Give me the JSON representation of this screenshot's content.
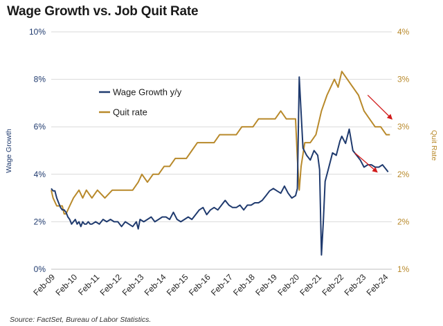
{
  "chart_data": {
    "type": "line",
    "title": "Wage Growth vs. Job Quit Rate",
    "source": "Source: FactSet, Bureau of Labor Statistics.",
    "x_tick_labels": [
      "Feb-09",
      "Feb-10",
      "Feb-11",
      "Feb-12",
      "Feb-13",
      "Feb-14",
      "Feb-15",
      "Feb-16",
      "Feb-17",
      "Feb-18",
      "Feb-19",
      "Feb-20",
      "Feb-21",
      "Feb-22",
      "Feb-23",
      "Feb-24"
    ],
    "x_range": [
      "2009-02",
      "2024-06"
    ],
    "y_left": {
      "label": "Wage Growth",
      "range": [
        0,
        10
      ],
      "ticks": [
        "0%",
        "2%",
        "4%",
        "6%",
        "8%",
        "10%"
      ],
      "color": "#1f3a6e"
    },
    "y_right": {
      "label": "Quit Rate",
      "range": [
        1,
        4
      ],
      "ticks": [
        "1%",
        "2%",
        "2%",
        "3%",
        "3%",
        "4%"
      ],
      "color": "#b8892a"
    },
    "legend_position": "upper-left inside plot",
    "series": [
      {
        "name": "Wage Growth y/y",
        "axis": "left",
        "color": "#1f3a6e",
        "points": [
          [
            "2009-02",
            3.4
          ],
          [
            "2009-03",
            3.3
          ],
          [
            "2009-04",
            3.3
          ],
          [
            "2009-05",
            3.0
          ],
          [
            "2009-06",
            2.8
          ],
          [
            "2009-07",
            2.6
          ],
          [
            "2009-08",
            2.5
          ],
          [
            "2009-09",
            2.5
          ],
          [
            "2009-10",
            2.4
          ],
          [
            "2009-11",
            2.2
          ],
          [
            "2009-12",
            2.1
          ],
          [
            "2010-01",
            1.9
          ],
          [
            "2010-02",
            2.0
          ],
          [
            "2010-03",
            2.1
          ],
          [
            "2010-04",
            1.9
          ],
          [
            "2010-05",
            2.0
          ],
          [
            "2010-06",
            1.8
          ],
          [
            "2010-07",
            2.0
          ],
          [
            "2010-08",
            1.9
          ],
          [
            "2010-09",
            1.9
          ],
          [
            "2010-10",
            2.0
          ],
          [
            "2010-11",
            1.9
          ],
          [
            "2010-12",
            1.9
          ],
          [
            "2011-02",
            2.0
          ],
          [
            "2011-04",
            1.9
          ],
          [
            "2011-06",
            2.1
          ],
          [
            "2011-08",
            2.0
          ],
          [
            "2011-10",
            2.1
          ],
          [
            "2011-12",
            2.0
          ],
          [
            "2012-02",
            2.0
          ],
          [
            "2012-04",
            1.8
          ],
          [
            "2012-06",
            2.0
          ],
          [
            "2012-08",
            1.9
          ],
          [
            "2012-10",
            1.8
          ],
          [
            "2012-12",
            2.0
          ],
          [
            "2013-01",
            1.7
          ],
          [
            "2013-02",
            2.1
          ],
          [
            "2013-04",
            2.0
          ],
          [
            "2013-06",
            2.1
          ],
          [
            "2013-08",
            2.2
          ],
          [
            "2013-10",
            2.0
          ],
          [
            "2013-12",
            2.1
          ],
          [
            "2014-02",
            2.2
          ],
          [
            "2014-04",
            2.2
          ],
          [
            "2014-06",
            2.1
          ],
          [
            "2014-08",
            2.4
          ],
          [
            "2014-10",
            2.1
          ],
          [
            "2014-12",
            2.0
          ],
          [
            "2015-02",
            2.1
          ],
          [
            "2015-04",
            2.2
          ],
          [
            "2015-06",
            2.1
          ],
          [
            "2015-08",
            2.3
          ],
          [
            "2015-10",
            2.5
          ],
          [
            "2015-12",
            2.6
          ],
          [
            "2016-02",
            2.3
          ],
          [
            "2016-04",
            2.5
          ],
          [
            "2016-06",
            2.6
          ],
          [
            "2016-08",
            2.5
          ],
          [
            "2016-10",
            2.7
          ],
          [
            "2016-12",
            2.9
          ],
          [
            "2017-02",
            2.7
          ],
          [
            "2017-04",
            2.6
          ],
          [
            "2017-06",
            2.6
          ],
          [
            "2017-08",
            2.7
          ],
          [
            "2017-10",
            2.5
          ],
          [
            "2017-12",
            2.7
          ],
          [
            "2018-02",
            2.7
          ],
          [
            "2018-04",
            2.8
          ],
          [
            "2018-06",
            2.8
          ],
          [
            "2018-08",
            2.9
          ],
          [
            "2018-10",
            3.1
          ],
          [
            "2018-12",
            3.3
          ],
          [
            "2019-02",
            3.4
          ],
          [
            "2019-04",
            3.3
          ],
          [
            "2019-06",
            3.2
          ],
          [
            "2019-08",
            3.5
          ],
          [
            "2019-10",
            3.2
          ],
          [
            "2019-12",
            3.0
          ],
          [
            "2020-02",
            3.1
          ],
          [
            "2020-03",
            3.4
          ],
          [
            "2020-04",
            8.1
          ],
          [
            "2020-05",
            6.6
          ],
          [
            "2020-06",
            5.1
          ],
          [
            "2020-08",
            4.8
          ],
          [
            "2020-10",
            4.6
          ],
          [
            "2020-12",
            5.0
          ],
          [
            "2021-02",
            4.8
          ],
          [
            "2021-03",
            4.2
          ],
          [
            "2021-04",
            0.6
          ],
          [
            "2021-05",
            2.0
          ],
          [
            "2021-06",
            3.7
          ],
          [
            "2021-08",
            4.3
          ],
          [
            "2021-10",
            4.9
          ],
          [
            "2021-12",
            4.8
          ],
          [
            "2022-02",
            5.4
          ],
          [
            "2022-03",
            5.6
          ],
          [
            "2022-05",
            5.3
          ],
          [
            "2022-07",
            5.9
          ],
          [
            "2022-09",
            5.0
          ],
          [
            "2022-11",
            4.8
          ],
          [
            "2023-01",
            4.6
          ],
          [
            "2023-03",
            4.3
          ],
          [
            "2023-05",
            4.4
          ],
          [
            "2023-07",
            4.4
          ],
          [
            "2023-09",
            4.3
          ],
          [
            "2023-11",
            4.3
          ],
          [
            "2024-01",
            4.4
          ],
          [
            "2024-03",
            4.2
          ],
          [
            "2024-04",
            4.1
          ]
        ]
      },
      {
        "name": "Quit rate",
        "axis": "right",
        "color": "#b8892a",
        "points": [
          [
            "2009-02",
            2.0
          ],
          [
            "2009-03",
            1.9
          ],
          [
            "2009-05",
            1.8
          ],
          [
            "2009-08",
            1.8
          ],
          [
            "2009-09",
            1.7
          ],
          [
            "2009-10",
            1.7
          ],
          [
            "2009-12",
            1.8
          ],
          [
            "2010-02",
            1.9
          ],
          [
            "2010-05",
            2.0
          ],
          [
            "2010-07",
            1.9
          ],
          [
            "2010-09",
            2.0
          ],
          [
            "2010-12",
            1.9
          ],
          [
            "2011-03",
            2.0
          ],
          [
            "2011-07",
            1.9
          ],
          [
            "2011-11",
            2.0
          ],
          [
            "2012-03",
            2.0
          ],
          [
            "2012-07",
            2.0
          ],
          [
            "2012-10",
            2.0
          ],
          [
            "2013-01",
            2.1
          ],
          [
            "2013-03",
            2.2
          ],
          [
            "2013-06",
            2.1
          ],
          [
            "2013-09",
            2.2
          ],
          [
            "2013-12",
            2.2
          ],
          [
            "2014-03",
            2.3
          ],
          [
            "2014-06",
            2.3
          ],
          [
            "2014-09",
            2.4
          ],
          [
            "2014-12",
            2.4
          ],
          [
            "2015-03",
            2.4
          ],
          [
            "2015-06",
            2.5
          ],
          [
            "2015-09",
            2.6
          ],
          [
            "2015-12",
            2.6
          ],
          [
            "2016-03",
            2.6
          ],
          [
            "2016-06",
            2.6
          ],
          [
            "2016-09",
            2.7
          ],
          [
            "2016-12",
            2.7
          ],
          [
            "2017-03",
            2.7
          ],
          [
            "2017-06",
            2.7
          ],
          [
            "2017-09",
            2.8
          ],
          [
            "2017-12",
            2.8
          ],
          [
            "2018-03",
            2.8
          ],
          [
            "2018-06",
            2.9
          ],
          [
            "2018-09",
            2.9
          ],
          [
            "2018-12",
            2.9
          ],
          [
            "2019-03",
            2.9
          ],
          [
            "2019-06",
            3.0
          ],
          [
            "2019-09",
            2.9
          ],
          [
            "2019-12",
            2.9
          ],
          [
            "2020-02",
            2.9
          ],
          [
            "2020-03",
            2.4
          ],
          [
            "2020-04",
            2.0
          ],
          [
            "2020-05",
            2.3
          ],
          [
            "2020-07",
            2.6
          ],
          [
            "2020-10",
            2.6
          ],
          [
            "2021-01",
            2.7
          ],
          [
            "2021-04",
            3.0
          ],
          [
            "2021-07",
            3.2
          ],
          [
            "2021-11",
            3.4
          ],
          [
            "2022-01",
            3.3
          ],
          [
            "2022-03",
            3.5
          ],
          [
            "2022-06",
            3.4
          ],
          [
            "2022-09",
            3.3
          ],
          [
            "2022-12",
            3.2
          ],
          [
            "2023-03",
            3.0
          ],
          [
            "2023-06",
            2.9
          ],
          [
            "2023-09",
            2.8
          ],
          [
            "2023-12",
            2.8
          ],
          [
            "2024-03",
            2.7
          ],
          [
            "2024-05",
            2.7
          ]
        ]
      }
    ],
    "annotations": [
      {
        "type": "arrow",
        "color": "#d11a1a",
        "from": [
          "2023-05",
          3.2
        ],
        "to": [
          "2024-06",
          2.9
        ],
        "axis": "right"
      },
      {
        "type": "arrow",
        "color": "#d11a1a",
        "from": [
          "2022-10",
          4.9
        ],
        "to": [
          "2023-10",
          4.1
        ],
        "axis": "left"
      }
    ]
  }
}
